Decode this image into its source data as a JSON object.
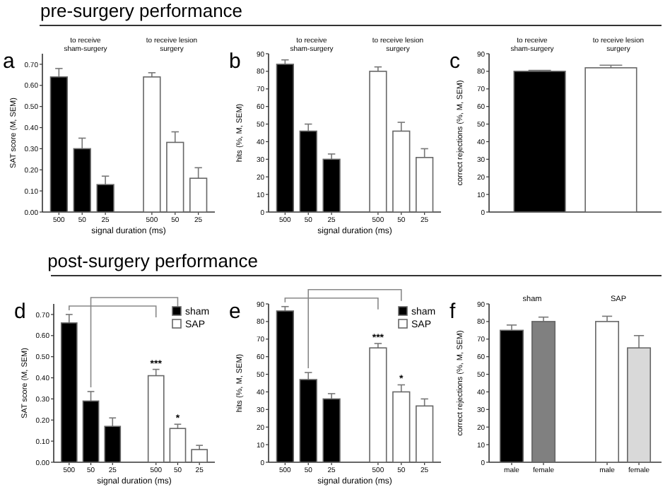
{
  "chart_data": [
    {
      "type": "bar",
      "title": "a",
      "subtitle": "pre-surgery performance",
      "xlabel": "signal duration (ms)",
      "ylabel": "SAT score (M, SEM)",
      "categories": [
        "500",
        "50",
        "25",
        null,
        "500",
        "50",
        "25"
      ],
      "values": [
        0.64,
        0.3,
        0.13,
        null,
        0.64,
        0.33,
        0.16
      ],
      "errors": [
        0.04,
        0.05,
        0.04,
        null,
        0.02,
        0.05,
        0.05
      ],
      "colors": [
        "#000000",
        "#000000",
        "#000000",
        null,
        "#ffffff",
        "#ffffff",
        "#ffffff"
      ],
      "ylim": [
        0,
        0.75
      ],
      "yticks": [
        {
          "value": 0,
          "label": "0.00"
        },
        {
          "value": 0.1,
          "label": "0.10"
        },
        {
          "value": 0.2,
          "label": "0.20"
        },
        {
          "value": 0.3,
          "label": "0.30"
        },
        {
          "value": 0.4,
          "label": "0.40"
        },
        {
          "value": 0.5,
          "label": "0.50"
        },
        {
          "value": 0.6,
          "label": "0.60"
        },
        {
          "value": 0.7,
          "label": "0.70"
        }
      ],
      "annotations": [
        "to receive sham-surgery",
        "to receive lesion surgery"
      ]
    },
    {
      "type": "bar",
      "title": "b",
      "xlabel": "signal duration (ms)",
      "ylabel": "hits (%, M, SEM)",
      "categories": [
        "500",
        "50",
        "25",
        null,
        "500",
        "50",
        "25"
      ],
      "values": [
        84,
        46,
        30,
        null,
        80,
        46,
        31
      ],
      "errors": [
        2.5,
        4,
        3,
        null,
        2.5,
        5,
        5
      ],
      "colors": [
        "#000000",
        "#000000",
        "#000000",
        null,
        "#ffffff",
        "#ffffff",
        "#ffffff"
      ],
      "ylim": [
        0,
        90
      ],
      "yticks": [
        0,
        10,
        20,
        30,
        40,
        50,
        60,
        70,
        80,
        90
      ],
      "annotations": [
        "to receive sham-surgery",
        "to receive lesion surgery"
      ]
    },
    {
      "type": "bar",
      "title": "c",
      "ylabel": "correct rejections (%, M, SEM)",
      "categories": [
        null,
        null
      ],
      "values": [
        80,
        82
      ],
      "errors": [
        0.5,
        1.5
      ],
      "colors": [
        "#000000",
        "#ffffff"
      ],
      "ylim": [
        0,
        90
      ],
      "yticks": [
        0,
        10,
        20,
        30,
        40,
        50,
        60,
        70,
        80,
        90
      ],
      "annotations": [
        "to receive sham-surgery",
        "to receive lesion surgery"
      ]
    },
    {
      "type": "bar",
      "title": "d",
      "subtitle": "post-surgery performance",
      "xlabel": "signal duration (ms)",
      "ylabel": "SAT score (M, SEM)",
      "categories": [
        "500",
        "50",
        "25",
        null,
        "500",
        "50",
        "25"
      ],
      "legend": "top right",
      "series": [
        {
          "name": "sham",
          "color": "#000000",
          "values": [
            0.66,
            0.29,
            0.17,
            null,
            null,
            null,
            null
          ],
          "errors": [
            0.04,
            0.045,
            0.04,
            null,
            null,
            null,
            null
          ]
        },
        {
          "name": "SAP",
          "color": "#ffffff",
          "values": [
            null,
            null,
            null,
            null,
            0.41,
            0.16,
            0.06
          ],
          "errors": [
            null,
            null,
            null,
            null,
            0.03,
            0.02,
            0.02
          ],
          "value_labels": [
            null,
            null,
            null,
            null,
            "***",
            "*",
            null
          ]
        }
      ],
      "ylim": [
        0,
        0.75
      ],
      "yticks": [
        {
          "value": 0,
          "label": "0.00"
        },
        {
          "value": 0.1,
          "label": "0.10"
        },
        {
          "value": 0.2,
          "label": "0.20"
        },
        {
          "value": 0.3,
          "label": "0.30"
        },
        {
          "value": 0.4,
          "label": "0.40"
        },
        {
          "value": 0.5,
          "label": "0.50"
        },
        {
          "value": 0.6,
          "label": "0.60"
        },
        {
          "value": 0.7,
          "label": "0.70"
        }
      ]
    },
    {
      "type": "bar",
      "title": "e",
      "xlabel": "signal duration (ms)",
      "ylabel": "hits (%, M, SEM)",
      "categories": [
        "500",
        "50",
        "25",
        null,
        "500",
        "50",
        "25"
      ],
      "legend": "top right",
      "series": [
        {
          "name": "sham",
          "color": "#000000",
          "values": [
            86,
            47,
            36,
            null,
            null,
            null,
            null
          ],
          "errors": [
            2.5,
            4,
            3,
            null,
            null,
            null,
            null
          ]
        },
        {
          "name": "SAP",
          "color": "#ffffff",
          "values": [
            null,
            null,
            null,
            null,
            65,
            40,
            32
          ],
          "errors": [
            null,
            null,
            null,
            null,
            2.5,
            4,
            4
          ],
          "value_labels": [
            null,
            null,
            null,
            null,
            "***",
            "*",
            null
          ]
        }
      ],
      "ylim": [
        0,
        90
      ],
      "yticks": [
        0,
        10,
        20,
        30,
        40,
        50,
        60,
        70,
        80,
        90
      ]
    },
    {
      "type": "bar",
      "title": "f",
      "ylabel": "correct rejections (%, M, SEM)",
      "categories": [
        "male",
        "female",
        null,
        "male",
        "female"
      ],
      "values": [
        75,
        80,
        null,
        80,
        65
      ],
      "errors": [
        3,
        2.5,
        null,
        3,
        7
      ],
      "colors": [
        "#000000",
        "#808080",
        null,
        "#ffffff",
        "#d9d9d9"
      ],
      "ylim": [
        0,
        90
      ],
      "yticks": [
        0,
        10,
        20,
        30,
        40,
        50,
        60,
        70,
        80,
        90
      ],
      "annotations": [
        "sham",
        "SAP"
      ]
    }
  ]
}
